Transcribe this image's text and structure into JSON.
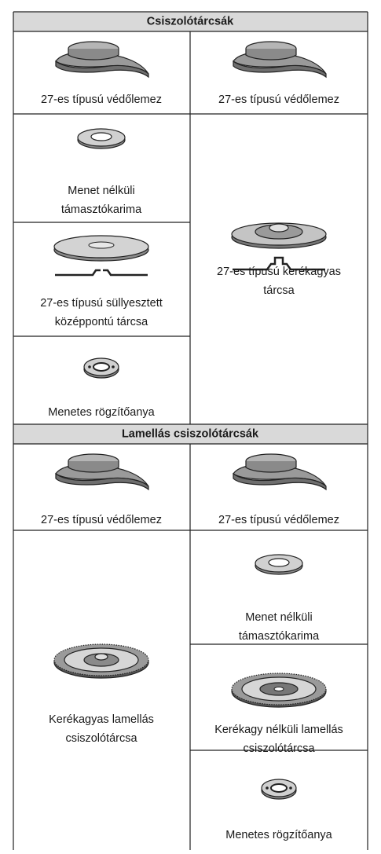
{
  "sections": [
    {
      "title": "Csiszolótárcsák",
      "cells": [
        {
          "label": [
            "27-es típusú védőlemez"
          ]
        },
        {
          "label": [
            "27-es típusú védőlemez"
          ]
        },
        {
          "label": [
            "Menet nélküli",
            "támasztókarima"
          ]
        },
        {
          "label": [
            "27-es típusú süllyesztett",
            "középpontú tárcsa"
          ]
        },
        {
          "label": [
            "Menetes rögzítőanya"
          ]
        },
        {
          "label": [
            "27-es típusú kerékagyas",
            "tárcsa"
          ]
        }
      ]
    },
    {
      "title": "Lamellás csiszolótárcsák",
      "cells": [
        {
          "label": [
            "27-es típusú védőlemez"
          ]
        },
        {
          "label": [
            "27-es típusú védőlemez"
          ]
        },
        {
          "label": [
            "Kerékagyas lamellás",
            "csiszolótárcsa"
          ]
        },
        {
          "label": [
            "Menet nélküli",
            "támasztókarima"
          ]
        },
        {
          "label": [
            "Kerékagy nélküli lamellás",
            "csiszolótárcsa"
          ]
        },
        {
          "label": [
            "Menetes rögzítőanya"
          ]
        }
      ]
    }
  ]
}
